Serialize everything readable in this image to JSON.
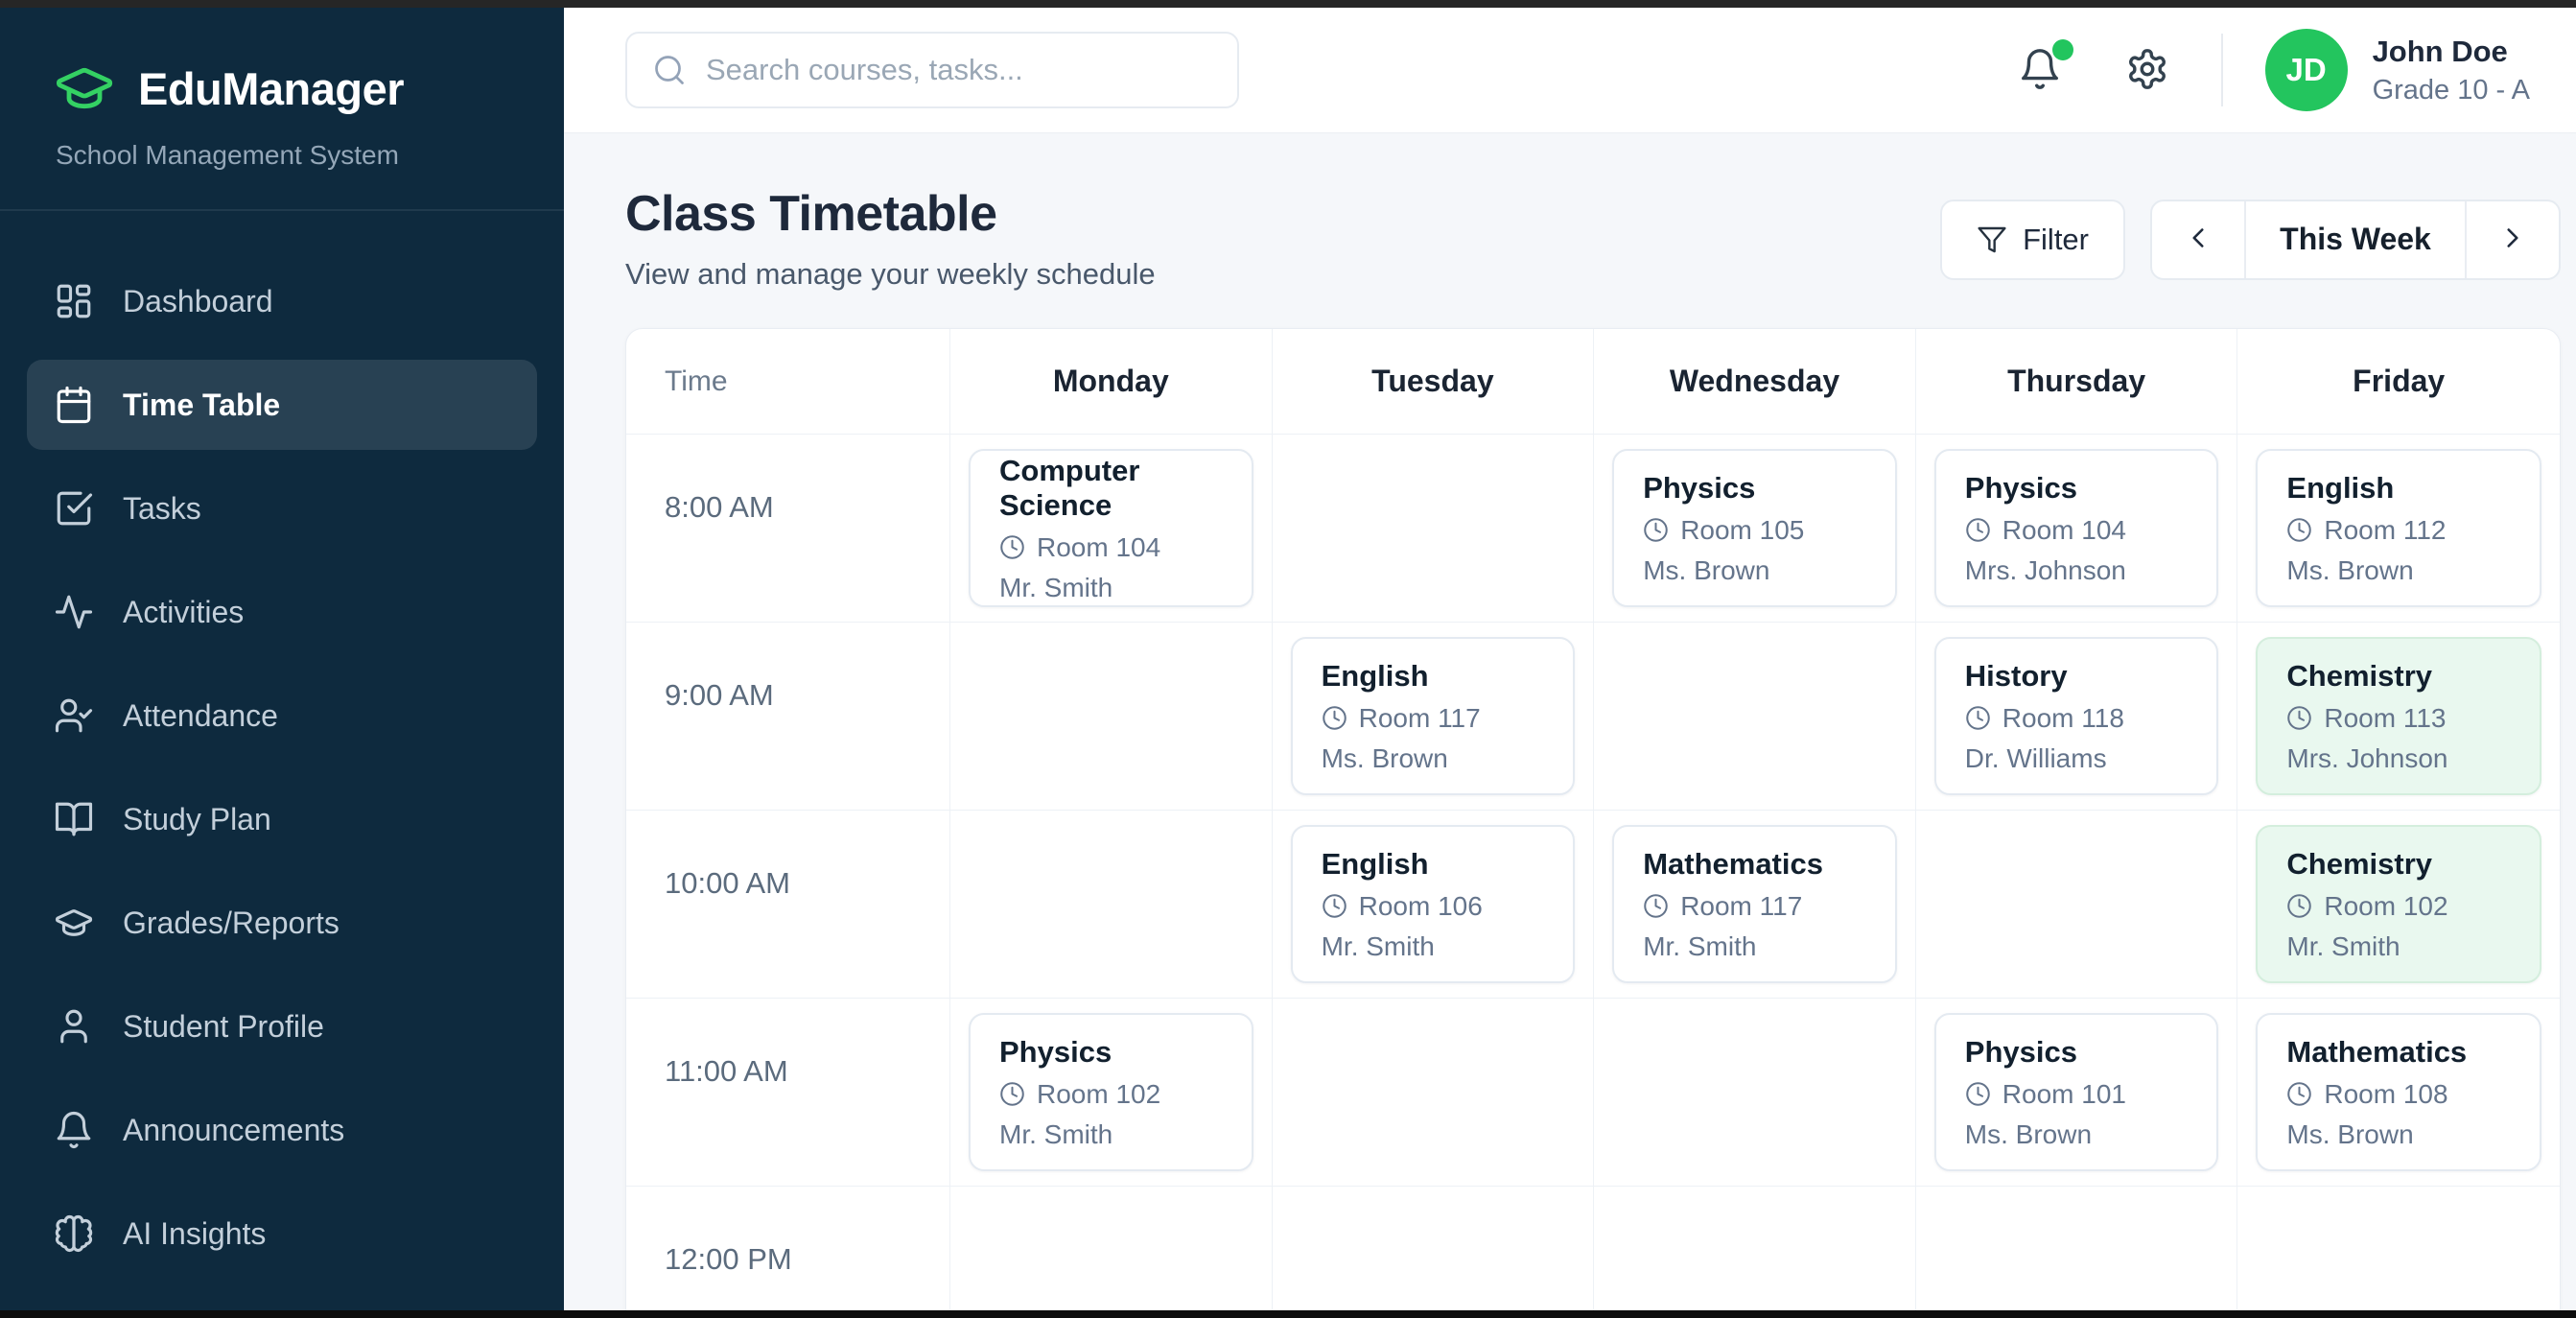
{
  "sidebar": {
    "logo_title": "EduManager",
    "logo_subtitle": "School Management System",
    "items": [
      {
        "label": "Dashboard",
        "icon": "dashboard-icon",
        "active": false
      },
      {
        "label": "Time Table",
        "icon": "calendar-icon",
        "active": true
      },
      {
        "label": "Tasks",
        "icon": "check-square-icon",
        "active": false
      },
      {
        "label": "Activities",
        "icon": "activity-icon",
        "active": false
      },
      {
        "label": "Attendance",
        "icon": "user-check-icon",
        "active": false
      },
      {
        "label": "Study Plan",
        "icon": "book-open-icon",
        "active": false
      },
      {
        "label": "Grades/Reports",
        "icon": "graduation-cap-icon",
        "active": false
      },
      {
        "label": "Student Profile",
        "icon": "user-icon",
        "active": false
      },
      {
        "label": "Announcements",
        "icon": "bell-icon",
        "active": false
      },
      {
        "label": "AI Insights",
        "icon": "brain-icon",
        "active": false
      }
    ]
  },
  "topbar": {
    "search_placeholder": "Search courses, tasks...",
    "user": {
      "initials": "JD",
      "name": "John Doe",
      "grade": "Grade 10 - A"
    }
  },
  "main": {
    "title": "Class Timetable",
    "subtitle": "View and manage your weekly schedule",
    "filter_label": "Filter",
    "week_label": "This Week"
  },
  "timetable": {
    "columns": [
      "Time",
      "Monday",
      "Tuesday",
      "Wednesday",
      "Thursday",
      "Friday"
    ],
    "rows": [
      {
        "time": "8:00 AM",
        "cells": [
          {
            "subject": "Computer Science",
            "room": "Room 104",
            "teacher": "Mr. Smith",
            "highlight": false
          },
          null,
          {
            "subject": "Physics",
            "room": "Room 105",
            "teacher": "Ms. Brown",
            "highlight": false
          },
          {
            "subject": "Physics",
            "room": "Room 104",
            "teacher": "Mrs. Johnson",
            "highlight": false
          },
          {
            "subject": "English",
            "room": "Room 112",
            "teacher": "Ms. Brown",
            "highlight": false
          }
        ]
      },
      {
        "time": "9:00 AM",
        "cells": [
          null,
          {
            "subject": "English",
            "room": "Room 117",
            "teacher": "Ms. Brown",
            "highlight": false
          },
          null,
          {
            "subject": "History",
            "room": "Room 118",
            "teacher": "Dr. Williams",
            "highlight": false
          },
          {
            "subject": "Chemistry",
            "room": "Room 113",
            "teacher": "Mrs. Johnson",
            "highlight": true
          }
        ]
      },
      {
        "time": "10:00 AM",
        "cells": [
          null,
          {
            "subject": "English",
            "room": "Room 106",
            "teacher": "Mr. Smith",
            "highlight": false
          },
          {
            "subject": "Mathematics",
            "room": "Room 117",
            "teacher": "Mr. Smith",
            "highlight": false
          },
          null,
          {
            "subject": "Chemistry",
            "room": "Room 102",
            "teacher": "Mr. Smith",
            "highlight": true
          }
        ]
      },
      {
        "time": "11:00 AM",
        "cells": [
          {
            "subject": "Physics",
            "room": "Room 102",
            "teacher": "Mr. Smith",
            "highlight": false
          },
          null,
          null,
          {
            "subject": "Physics",
            "room": "Room 101",
            "teacher": "Ms. Brown",
            "highlight": false
          },
          {
            "subject": "Mathematics",
            "room": "Room 108",
            "teacher": "Ms. Brown",
            "highlight": false
          }
        ]
      },
      {
        "time": "12:00 PM",
        "cells": [
          null,
          null,
          null,
          null,
          null
        ]
      }
    ]
  },
  "colors": {
    "sidebar_bg": "#0e2a3e",
    "accent_green": "#34d163",
    "avatar_green": "#23c55e",
    "notification_dot": "#22c55e",
    "highlight_card_bg": "#e9f8ef",
    "content_bg": "#f5f7fa"
  }
}
